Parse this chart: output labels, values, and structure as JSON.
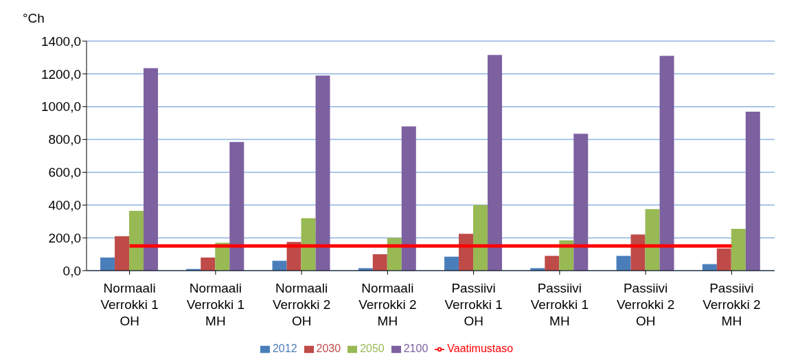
{
  "chart_data": {
    "type": "bar",
    "ylabel": "°Ch",
    "categories": [
      "Normaali\nVerrokki 1\nOH",
      "Normaali\nVerrokki 1\nMH",
      "Normaali\nVerrokki 2\nOH",
      "Normaali\nVerrokki 2\nMH",
      "Passiivi\nVerrokki 1\nOH",
      "Passiivi\nVerrokki 1\nMH",
      "Passiivi\nVerrokki 2\nOH",
      "Passiivi\nVerrokki 2\nMH"
    ],
    "series": [
      {
        "name": "2012",
        "color": "#4a7ebb",
        "values": [
          80,
          10,
          60,
          15,
          85,
          15,
          90,
          40
        ]
      },
      {
        "name": "2030",
        "color": "#be4b48",
        "values": [
          210,
          80,
          175,
          100,
          225,
          90,
          220,
          135
        ]
      },
      {
        "name": "2050",
        "color": "#98b954",
        "values": [
          365,
          170,
          320,
          200,
          400,
          185,
          375,
          255
        ]
      },
      {
        "name": "2100",
        "color": "#7d60a0",
        "values": [
          1235,
          785,
          1190,
          880,
          1315,
          835,
          1310,
          970
        ]
      },
      {
        "name": "Vaatimustaso",
        "type": "line",
        "color": "#ff0000",
        "values": [
          150,
          150,
          150,
          150,
          150,
          150,
          150,
          150
        ]
      }
    ],
    "ylim": [
      0,
      1400
    ],
    "yticks": [
      {
        "value": 0,
        "label": "0,0"
      },
      {
        "value": 200,
        "label": "200,0"
      },
      {
        "value": 400,
        "label": "400,0"
      },
      {
        "value": 600,
        "label": "600,0"
      },
      {
        "value": 800,
        "label": "800,0"
      },
      {
        "value": 1000,
        "label": "1000,0"
      },
      {
        "value": 1200,
        "label": "1200,0"
      },
      {
        "value": 1400,
        "label": "1400,0"
      }
    ],
    "grid": "y",
    "legend": "bottom",
    "marker": "none"
  }
}
